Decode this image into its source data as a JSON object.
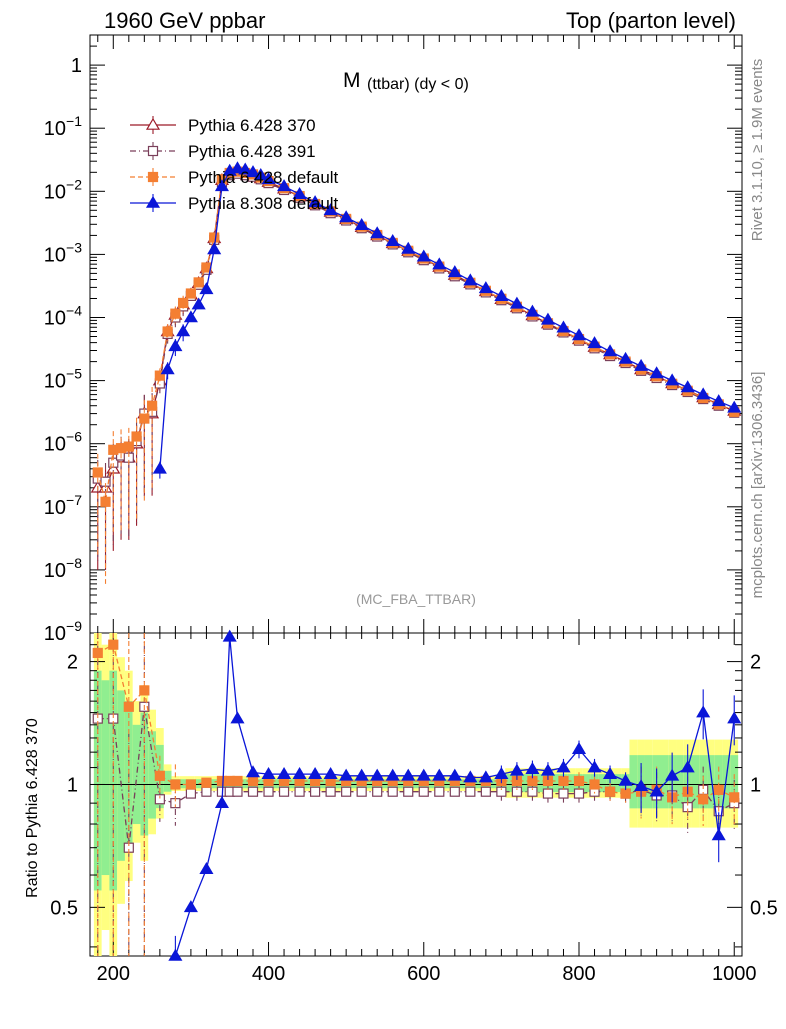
{
  "header": {
    "left": "1960 GeV ppbar",
    "right": "Top (parton level)"
  },
  "side_labels": {
    "rivet": "Rivet 3.1.10, ≥ 1.9M events",
    "source": "mcplots.cern.ch [arXiv:1306.3436]"
  },
  "plot_title": {
    "main": "M",
    "sub": "(ttbar) (dy < 0)"
  },
  "analysis_tag": "(MC_FBA_TTBAR)",
  "ratio_ylabel": "Ratio to Pythia 6.428 370",
  "legend": [
    "Pythia 6.428 370",
    "Pythia 6.428 391",
    "Pythia 6.428 default",
    "Pythia 8.308 default"
  ],
  "colors": {
    "p370": "#9c1a28",
    "p391": "#7a3f5a",
    "p6def": "#f47f32",
    "p8def": "#0a16d8",
    "band_green": "#90ee90",
    "band_yellow": "#ffff80"
  },
  "chart_data": [
    {
      "type": "line",
      "title": "M (ttbar) (dy < 0)",
      "xlim": [
        170,
        1010
      ],
      "ylim": [
        1e-09,
        3
      ],
      "yscale": "log",
      "ytick_labels": [
        "1",
        "10^-1",
        "10^-2",
        "10^-3",
        "10^-4",
        "10^-5",
        "10^-6",
        "10^-7",
        "10^-8",
        "10^-9"
      ],
      "x": [
        180,
        190,
        200,
        210,
        220,
        230,
        240,
        250,
        260,
        270,
        280,
        290,
        300,
        310,
        320,
        330,
        340,
        350,
        360,
        370,
        380,
        390,
        400,
        420,
        440,
        460,
        480,
        500,
        520,
        540,
        560,
        580,
        600,
        620,
        640,
        660,
        680,
        700,
        720,
        740,
        760,
        780,
        800,
        820,
        840,
        860,
        880,
        900,
        920,
        940,
        960,
        980,
        1000
      ],
      "series": [
        {
          "name": "Pythia 6.428 370",
          "values": [
            2e-07,
            2e-07,
            4e-07,
            6e-07,
            6e-07,
            1e-06,
            3e-06,
            3e-06,
            1e-05,
            6e-05,
            0.00011,
            0.00016,
            0.00023,
            0.00035,
            0.0006,
            0.0018,
            0.015,
            0.019,
            0.02,
            0.019,
            0.018,
            0.016,
            0.014,
            0.011,
            0.0082,
            0.0062,
            0.0047,
            0.0036,
            0.0027,
            0.002,
            0.0015,
            0.00113,
            0.00085,
            0.00063,
            0.00047,
            0.00035,
            0.00026,
            0.000195,
            0.000145,
            0.000108,
            8e-05,
            6e-05,
            4.5e-05,
            3.4e-05,
            2.6e-05,
            2e-05,
            1.5e-05,
            1.18e-05,
            9e-06,
            7e-06,
            5.4e-06,
            4.2e-06,
            3.3e-06
          ]
        },
        {
          "name": "Pythia 6.428 391",
          "values": [
            2.8e-07,
            2.5e-07,
            5e-07,
            6.5e-07,
            6e-07,
            1.1e-06,
            3e-06,
            3.2e-06,
            9e-06,
            5.5e-05,
            0.0001,
            0.00015,
            0.00022,
            0.00033,
            0.00057,
            0.0017,
            0.014,
            0.018,
            0.019,
            0.018,
            0.017,
            0.0155,
            0.0135,
            0.0105,
            0.0079,
            0.006,
            0.0045,
            0.00345,
            0.0026,
            0.00192,
            0.00144,
            0.00108,
            0.00081,
            0.0006,
            0.00045,
            0.000335,
            0.00025,
            0.000188,
            0.00014,
            0.000104,
            7.7e-05,
            5.8e-05,
            4.3e-05,
            3.25e-05,
            2.45e-05,
            1.9e-05,
            1.43e-05,
            1.1e-05,
            8.5e-06,
            6.6e-06,
            5.1e-06,
            4e-06,
            3.1e-06
          ]
        },
        {
          "name": "Pythia 6.428 default",
          "values": [
            3.5e-07,
            1.2e-07,
            8e-07,
            8.5e-07,
            9e-07,
            1.3e-06,
            2.5e-06,
            4e-06,
            1.2e-05,
            6e-05,
            0.000115,
            0.00017,
            0.00024,
            0.00036,
            0.00062,
            0.00185,
            0.0155,
            0.0195,
            0.0205,
            0.0195,
            0.0185,
            0.0165,
            0.0145,
            0.0112,
            0.0084,
            0.0063,
            0.0048,
            0.00365,
            0.00275,
            0.00203,
            0.00152,
            0.00114,
            0.00086,
            0.00064,
            0.00048,
            0.000355,
            0.000265,
            0.000198,
            0.000148,
            0.00011,
            8.1e-05,
            6.1e-05,
            4.55e-05,
            3.45e-05,
            2.6e-05,
            2e-05,
            1.5e-05,
            1.17e-05,
            8.9e-06,
            6.9e-06,
            5.3e-06,
            4.2e-06,
            3.2e-06
          ]
        },
        {
          "name": "Pythia 8.308 default",
          "values": [
            null,
            null,
            null,
            null,
            null,
            null,
            null,
            null,
            4e-07,
            1.5e-05,
            3.5e-05,
            6e-05,
            0.0001,
            0.00016,
            0.00028,
            0.0012,
            0.012,
            0.021,
            0.023,
            0.022,
            0.02,
            0.018,
            0.0155,
            0.012,
            0.009,
            0.0067,
            0.005,
            0.00385,
            0.0029,
            0.00215,
            0.00162,
            0.00122,
            0.00092,
            0.00069,
            0.00052,
            0.000385,
            0.00029,
            0.000218,
            0.000165,
            0.000123,
            9.2e-05,
            6.9e-05,
            5.2e-05,
            3.9e-05,
            2.9e-05,
            2.2e-05,
            1.7e-05,
            1.3e-05,
            1e-05,
            7.8e-06,
            6e-06,
            4.7e-06,
            3.7e-06
          ]
        }
      ]
    },
    {
      "type": "line",
      "title": "",
      "ylabel": "Ratio to Pythia 6.428 370",
      "xlim": [
        170,
        1010
      ],
      "ylim": [
        0.38,
        2.35
      ],
      "yscale": "log",
      "ytick_labels": [
        "0.5",
        "1",
        "2"
      ],
      "xtick_labels": [
        "200",
        "400",
        "600",
        "800",
        "1000"
      ],
      "x": [
        180,
        200,
        220,
        240,
        260,
        280,
        300,
        320,
        340,
        350,
        360,
        380,
        400,
        420,
        440,
        460,
        480,
        500,
        520,
        540,
        560,
        580,
        600,
        620,
        640,
        660,
        680,
        700,
        720,
        740,
        760,
        780,
        800,
        820,
        840,
        860,
        880,
        900,
        920,
        940,
        960,
        980,
        1000
      ],
      "series": [
        {
          "name": "Pythia 6.428 391",
          "values": [
            1.45,
            1.45,
            0.7,
            1.55,
            0.92,
            0.9,
            0.95,
            0.96,
            0.96,
            0.96,
            0.96,
            0.96,
            0.96,
            0.96,
            0.96,
            0.96,
            0.96,
            0.96,
            0.96,
            0.96,
            0.96,
            0.96,
            0.96,
            0.96,
            0.96,
            0.96,
            0.96,
            0.96,
            0.96,
            0.96,
            0.95,
            0.95,
            0.95,
            0.96,
            0.96,
            0.95,
            0.97,
            0.94,
            0.94,
            0.88,
            0.97,
            0.86,
            0.9
          ]
        },
        {
          "name": "Pythia 6.428 default",
          "values": [
            2.1,
            2.2,
            1.55,
            1.7,
            1.05,
            1.0,
            1.0,
            1.01,
            1.02,
            1.02,
            1.02,
            1.02,
            1.02,
            1.02,
            1.02,
            1.02,
            1.02,
            1.02,
            1.02,
            1.02,
            1.02,
            1.02,
            1.02,
            1.02,
            1.02,
            1.02,
            1.02,
            1.02,
            1.02,
            1.02,
            1.02,
            1.02,
            1.02,
            1.0,
            0.96,
            0.95,
            0.96,
            0.97,
            0.93,
            0.96,
            0.92,
            0.97,
            0.93
          ]
        },
        {
          "name": "Pythia 8.308 default",
          "values": [
            null,
            null,
            null,
            null,
            null,
            0.38,
            0.5,
            0.62,
            0.9,
            2.3,
            1.45,
            1.07,
            1.06,
            1.06,
            1.06,
            1.06,
            1.06,
            1.05,
            1.05,
            1.05,
            1.05,
            1.05,
            1.05,
            1.05,
            1.05,
            1.04,
            1.04,
            1.06,
            1.08,
            1.09,
            1.08,
            1.1,
            1.22,
            1.1,
            1.06,
            1.02,
            0.99,
            0.96,
            1.05,
            1.1,
            1.5,
            0.75,
            1.45
          ]
        }
      ]
    }
  ]
}
